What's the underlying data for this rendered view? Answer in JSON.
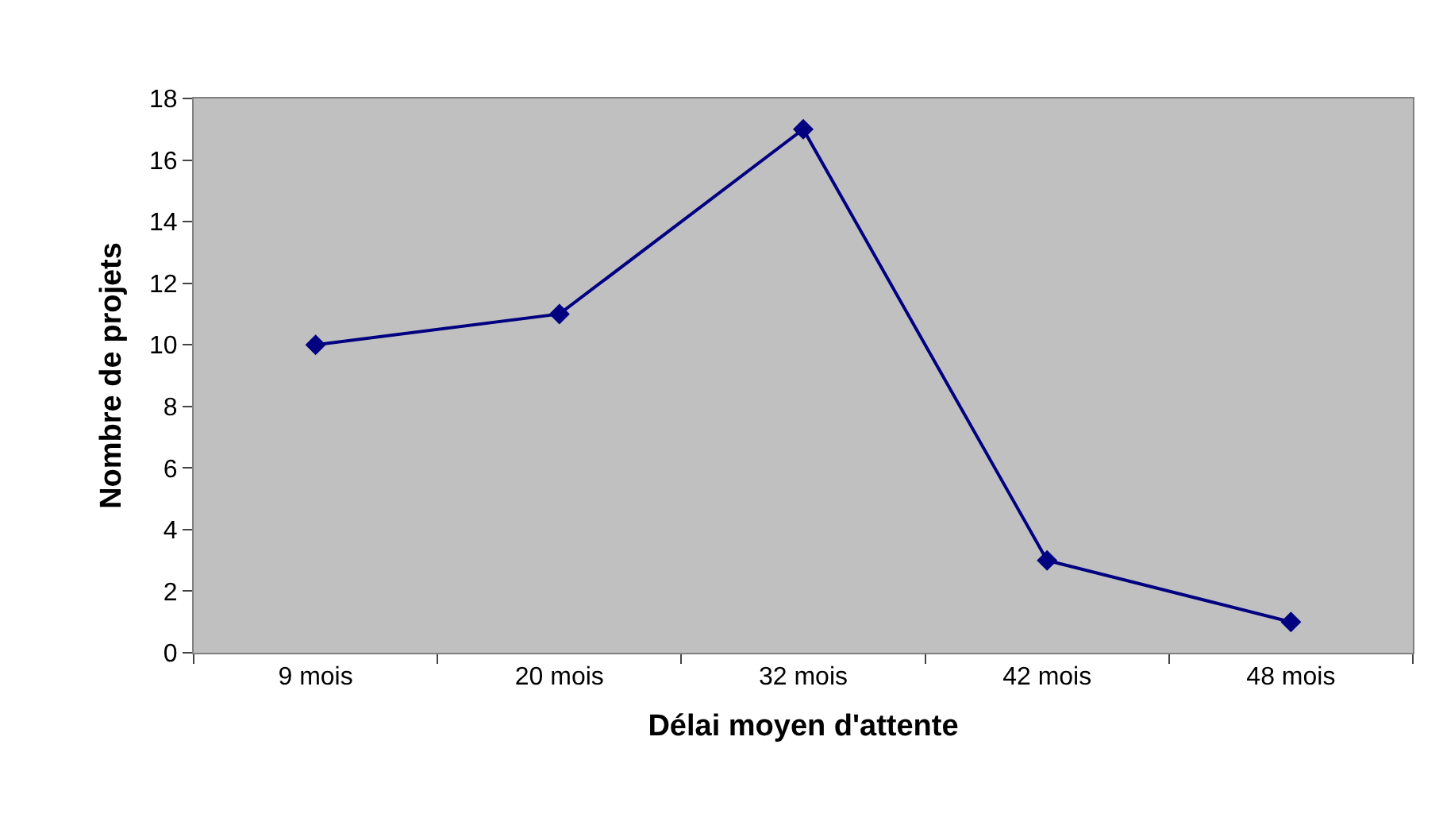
{
  "chart_data": {
    "type": "line",
    "xlabel": "Délai moyen d'attente",
    "ylabel": "Nombre de projets",
    "categories": [
      "9 mois",
      "20 mois",
      "32 mois",
      "42 mois",
      "48 mois"
    ],
    "series": [
      {
        "color": "#000080",
        "values": [
          10,
          11,
          17,
          3,
          1
        ]
      }
    ],
    "ylim": [
      0,
      18
    ],
    "yticks": [
      0,
      2,
      4,
      6,
      8,
      10,
      12,
      14,
      16,
      18
    ],
    "grid": false,
    "marker": "diamond",
    "line_style": "solid"
  }
}
